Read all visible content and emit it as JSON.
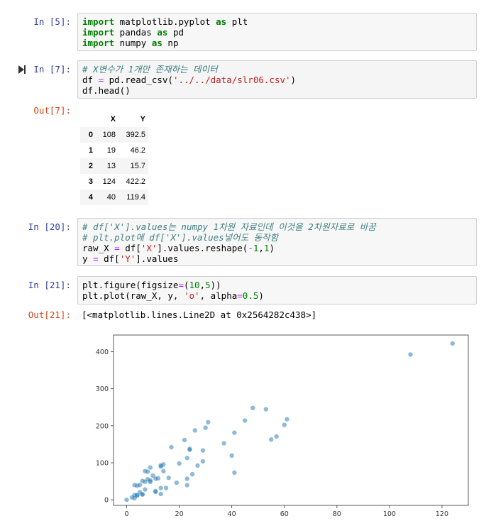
{
  "cells": [
    {
      "prompt": "In [5]:",
      "lines": [
        "import matplotlib.pyplot as plt",
        "import pandas as pd",
        "import numpy as np"
      ]
    },
    {
      "prompt": "In [7]:",
      "lines": [
        "# X변수가 1개만 존재하는 데이터",
        "df = pd.read_csv('../../data/slr06.csv')",
        "df.head()"
      ]
    },
    {
      "prompt": "In [20]:",
      "lines": [
        "# df['X'].values는 numpy 1차원 자료인데 이것을 2차원자료로 바꿈",
        "# plt.plot에 df['X'].values넣어도 동작함",
        "raw_X = df['X'].values.reshape(-1,1)",
        "y = df['Y'].values"
      ]
    },
    {
      "prompt": "In [21]:",
      "lines": [
        "plt.figure(figsize=(10,5))",
        "plt.plot(raw_X, y, 'o', alpha=0.5)"
      ]
    }
  ],
  "outputs": {
    "out7_prompt": "Out[7]:",
    "out21_prompt": "Out[21]:",
    "out21_text": "[<matplotlib.lines.Line2D at 0x2564282c438>]"
  },
  "dataframe": {
    "columns": [
      "",
      "X",
      "Y"
    ],
    "rows": [
      [
        "0",
        "108",
        "392.5"
      ],
      [
        "1",
        "19",
        "46.2"
      ],
      [
        "2",
        "13",
        "15.7"
      ],
      [
        "3",
        "124",
        "422.2"
      ],
      [
        "4",
        "40",
        "119.4"
      ]
    ]
  },
  "chart_data": {
    "type": "scatter",
    "xlim": [
      -5,
      130
    ],
    "ylim": [
      -15,
      445
    ],
    "xticks": [
      0,
      20,
      40,
      60,
      80,
      100,
      120
    ],
    "yticks": [
      0,
      100,
      200,
      300,
      400
    ],
    "color": "#1f77b4",
    "alpha": 0.5,
    "x": [
      108,
      19,
      13,
      124,
      40,
      57,
      23,
      14,
      45,
      10,
      5,
      48,
      11,
      23,
      7,
      2,
      24,
      6,
      3,
      23,
      6,
      9,
      9,
      3,
      29,
      7,
      4,
      20,
      7,
      4,
      0,
      25,
      6,
      5,
      22,
      11,
      61,
      12,
      4,
      16,
      13,
      60,
      41,
      37,
      55,
      41,
      11,
      27,
      8,
      3,
      17,
      13,
      13,
      15,
      8,
      29,
      30,
      24,
      9,
      31,
      14,
      53,
      26
    ],
    "y": [
      392.5,
      46.2,
      15.7,
      422.2,
      119.4,
      170.9,
      56.9,
      77.5,
      214,
      65.3,
      20.9,
      248.1,
      23.5,
      39.6,
      48.8,
      6.6,
      134.9,
      50.9,
      4.4,
      113,
      14.8,
      48.7,
      52.1,
      13.2,
      103.9,
      77.5,
      11.8,
      98.1,
      27.9,
      38.1,
      0,
      69.2,
      14.6,
      40.3,
      161.5,
      57.2,
      217.6,
      58.1,
      12.6,
      59.6,
      89.9,
      202.4,
      181.3,
      152.8,
      162.8,
      73.4,
      21.3,
      92.6,
      76.1,
      39.9,
      142.1,
      93,
      31.9,
      32.1,
      55.6,
      133.3,
      194.5,
      137.9,
      87.4,
      209.8,
      95.5,
      244.6,
      187.5
    ]
  }
}
